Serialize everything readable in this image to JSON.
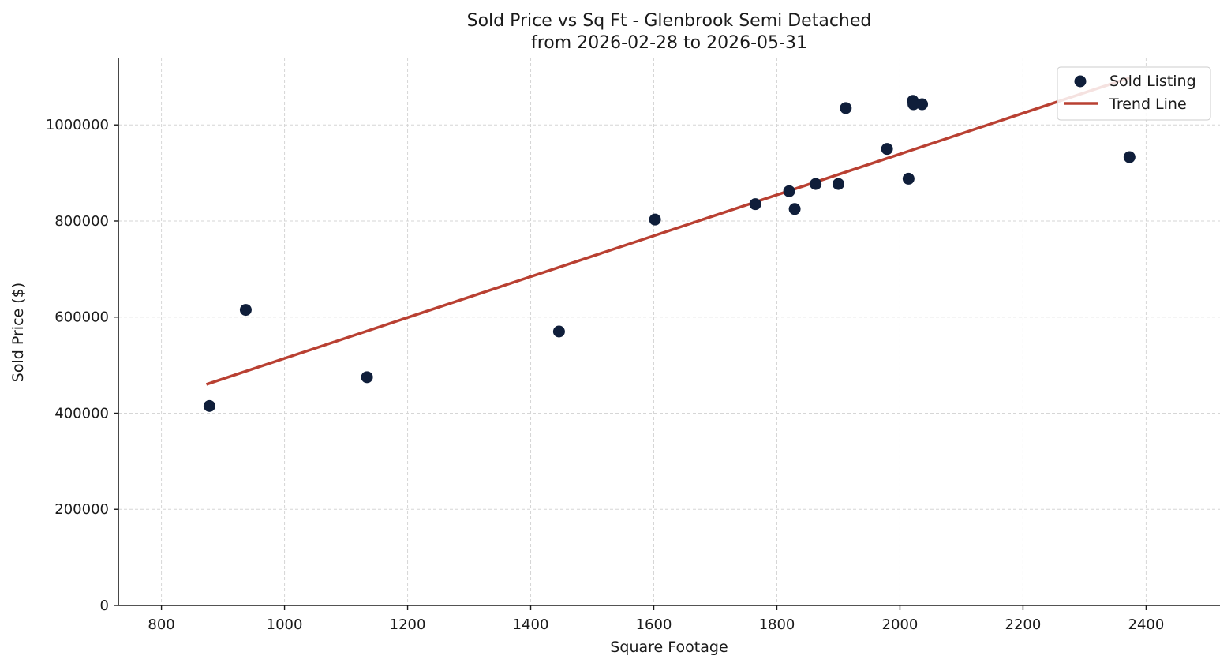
{
  "chart_data": {
    "type": "scatter",
    "title_line1": "Sold Price vs Sq Ft - Glenbrook Semi Detached",
    "title_line2": "from 2026-02-28 to 2026-05-31",
    "xlabel": "Square Footage",
    "ylabel": "Sold Price ($)",
    "xlim": [
      730,
      2520
    ],
    "ylim": [
      0,
      1140000
    ],
    "x_ticks": [
      800,
      1000,
      1200,
      1400,
      1600,
      1800,
      2000,
      2200,
      2400
    ],
    "y_ticks": [
      0,
      200000,
      400000,
      600000,
      800000,
      1000000
    ],
    "grid": true,
    "legend_position": "top-right",
    "series": [
      {
        "name": "Sold Listing",
        "kind": "scatter",
        "color": "#0f1e3a",
        "points": [
          {
            "x": 878,
            "y": 415000
          },
          {
            "x": 937,
            "y": 615000
          },
          {
            "x": 1134,
            "y": 475000
          },
          {
            "x": 1446,
            "y": 570000
          },
          {
            "x": 1602,
            "y": 803000
          },
          {
            "x": 1765,
            "y": 835000
          },
          {
            "x": 1820,
            "y": 862000
          },
          {
            "x": 1829,
            "y": 825000
          },
          {
            "x": 1863,
            "y": 877000
          },
          {
            "x": 1900,
            "y": 877000
          },
          {
            "x": 1912,
            "y": 1035000
          },
          {
            "x": 1979,
            "y": 950000
          },
          {
            "x": 2014,
            "y": 888000
          },
          {
            "x": 2021,
            "y": 1050000
          },
          {
            "x": 2022,
            "y": 1043000
          },
          {
            "x": 2036,
            "y": 1043000
          },
          {
            "x": 2373,
            "y": 933000
          }
        ]
      },
      {
        "name": "Trend Line",
        "kind": "line",
        "color": "#b94032",
        "points": [
          {
            "x": 873,
            "y": 460000
          },
          {
            "x": 2373,
            "y": 1098000
          }
        ]
      }
    ]
  }
}
